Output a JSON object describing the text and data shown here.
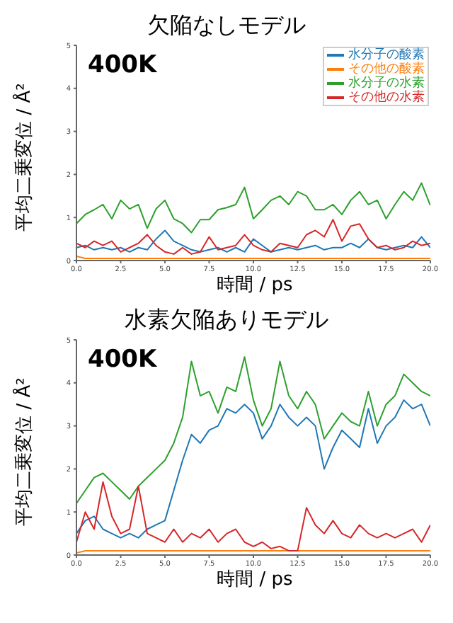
{
  "chart_data": [
    {
      "type": "line",
      "title": "欠陥なしモデル",
      "xlabel": "時間 / ps",
      "ylabel": "平均二乗変位 / Å²",
      "annotations": [
        "400K"
      ],
      "legend": "top right",
      "x": [
        0,
        0.5,
        1,
        1.5,
        2,
        2.5,
        3,
        3.5,
        4,
        4.5,
        5,
        5.5,
        6,
        6.5,
        7,
        7.5,
        8,
        8.5,
        9,
        9.5,
        10,
        10.5,
        11,
        11.5,
        12,
        12.5,
        13,
        13.5,
        14,
        14.5,
        15,
        15.5,
        16,
        16.5,
        17,
        17.5,
        18,
        18.5,
        19,
        19.5,
        20
      ],
      "xlim": [
        0,
        20
      ],
      "xticks": [
        {
          "value": 0,
          "label": "0.0"
        },
        {
          "value": 2.5,
          "label": "2.5"
        },
        {
          "value": 5,
          "label": "5.0"
        },
        {
          "value": 7.5,
          "label": "7.5"
        },
        {
          "value": 10,
          "label": "10.0"
        },
        {
          "value": 12.5,
          "label": "12.5"
        },
        {
          "value": 15,
          "label": "15.0"
        },
        {
          "value": 17.5,
          "label": "17.5"
        },
        {
          "value": 20,
          "label": "20.0"
        }
      ],
      "ylim": [
        0,
        5
      ],
      "yticks": [
        0,
        1,
        2,
        3,
        4,
        5
      ],
      "series": [
        {
          "name": "水分子の酸素",
          "color": "#1f77b4",
          "values": [
            0.3,
            0.35,
            0.25,
            0.3,
            0.25,
            0.3,
            0.2,
            0.3,
            0.25,
            0.5,
            0.7,
            0.45,
            0.35,
            0.25,
            0.2,
            0.25,
            0.3,
            0.2,
            0.3,
            0.2,
            0.5,
            0.35,
            0.2,
            0.25,
            0.3,
            0.25,
            0.3,
            0.35,
            0.25,
            0.3,
            0.3,
            0.4,
            0.3,
            0.5,
            0.3,
            0.25,
            0.3,
            0.35,
            0.3,
            0.55,
            0.3
          ]
        },
        {
          "name": "その他の酸素",
          "color": "#ff7f0e",
          "values": [
            0.1,
            0.05,
            0.05,
            0.05,
            0.05,
            0.05,
            0.05,
            0.05,
            0.05,
            0.05,
            0.05,
            0.05,
            0.05,
            0.05,
            0.05,
            0.05,
            0.05,
            0.05,
            0.05,
            0.05,
            0.05,
            0.05,
            0.05,
            0.05,
            0.05,
            0.05,
            0.05,
            0.05,
            0.05,
            0.05,
            0.05,
            0.05,
            0.05,
            0.05,
            0.05,
            0.05,
            0.05,
            0.05,
            0.05,
            0.05,
            0.05
          ]
        },
        {
          "name": "水分子の水素",
          "color": "#2ca02c",
          "values": [
            0.86,
            1.07,
            1.18,
            1.3,
            0.97,
            1.4,
            1.2,
            1.3,
            0.75,
            1.2,
            1.4,
            0.97,
            0.86,
            0.65,
            0.95,
            0.95,
            1.18,
            1.23,
            1.3,
            1.7,
            0.97,
            1.18,
            1.4,
            1.5,
            1.3,
            1.6,
            1.5,
            1.18,
            1.18,
            1.3,
            1.07,
            1.4,
            1.6,
            1.3,
            1.4,
            0.97,
            1.3,
            1.6,
            1.4,
            1.8,
            1.28
          ]
        },
        {
          "name": "その他の水素",
          "color": "#d62728",
          "values": [
            0.4,
            0.3,
            0.45,
            0.35,
            0.45,
            0.2,
            0.3,
            0.4,
            0.6,
            0.35,
            0.2,
            0.15,
            0.3,
            0.15,
            0.2,
            0.55,
            0.25,
            0.3,
            0.35,
            0.6,
            0.35,
            0.25,
            0.2,
            0.4,
            0.35,
            0.3,
            0.6,
            0.7,
            0.55,
            0.95,
            0.45,
            0.8,
            0.85,
            0.5,
            0.3,
            0.35,
            0.25,
            0.3,
            0.45,
            0.35,
            0.4
          ]
        }
      ]
    },
    {
      "type": "line",
      "title": "水素欠陥ありモデル",
      "xlabel": "時間 / ps",
      "ylabel": "平均二乗変位 / Å²",
      "annotations": [
        "400K"
      ],
      "x": [
        0,
        0.5,
        1,
        1.5,
        2,
        2.5,
        3,
        3.5,
        4,
        4.5,
        5,
        5.5,
        6,
        6.5,
        7,
        7.5,
        8,
        8.5,
        9,
        9.5,
        10,
        10.5,
        11,
        11.5,
        12,
        12.5,
        13,
        13.5,
        14,
        14.5,
        15,
        15.5,
        16,
        16.5,
        17,
        17.5,
        18,
        18.5,
        19,
        19.5,
        20
      ],
      "xlim": [
        0,
        20
      ],
      "xticks": [
        {
          "value": 0,
          "label": "0.0"
        },
        {
          "value": 2.5,
          "label": "2.5"
        },
        {
          "value": 5,
          "label": "5.0"
        },
        {
          "value": 7.5,
          "label": "7.5"
        },
        {
          "value": 10,
          "label": "10.0"
        },
        {
          "value": 12.5,
          "label": "12.5"
        },
        {
          "value": 15,
          "label": "15.0"
        },
        {
          "value": 17.5,
          "label": "17.5"
        },
        {
          "value": 20,
          "label": "20.0"
        }
      ],
      "ylim": [
        0,
        5
      ],
      "yticks": [
        0,
        1,
        2,
        3,
        4,
        5
      ],
      "series": [
        {
          "color": "#1f77b4",
          "values": [
            0.5,
            0.8,
            0.9,
            0.6,
            0.5,
            0.4,
            0.5,
            0.4,
            0.6,
            0.7,
            0.8,
            1.5,
            2.2,
            2.8,
            2.6,
            2.9,
            3.0,
            3.4,
            3.3,
            3.5,
            3.3,
            2.7,
            3.0,
            3.5,
            3.2,
            3.0,
            3.2,
            3.0,
            2.0,
            2.5,
            2.9,
            2.7,
            2.5,
            3.4,
            2.6,
            3.0,
            3.2,
            3.6,
            3.4,
            3.5,
            3.0
          ]
        },
        {
          "color": "#ff7f0e",
          "values": [
            0.05,
            0.1,
            0.1,
            0.1,
            0.1,
            0.1,
            0.1,
            0.1,
            0.1,
            0.1,
            0.1,
            0.1,
            0.1,
            0.1,
            0.1,
            0.1,
            0.1,
            0.1,
            0.1,
            0.1,
            0.1,
            0.1,
            0.1,
            0.1,
            0.1,
            0.1,
            0.1,
            0.1,
            0.1,
            0.1,
            0.1,
            0.1,
            0.1,
            0.1,
            0.1,
            0.1,
            0.1,
            0.1,
            0.1,
            0.1,
            0.1
          ]
        },
        {
          "color": "#2ca02c",
          "values": [
            1.2,
            1.5,
            1.8,
            1.9,
            1.7,
            1.5,
            1.3,
            1.6,
            1.8,
            2.0,
            2.2,
            2.6,
            3.2,
            4.5,
            3.7,
            3.8,
            3.3,
            3.9,
            3.8,
            4.6,
            3.6,
            3.0,
            3.4,
            4.5,
            3.7,
            3.4,
            3.8,
            3.5,
            2.7,
            3.0,
            3.3,
            3.1,
            3.0,
            3.8,
            3.0,
            3.5,
            3.7,
            4.2,
            4.0,
            3.8,
            3.7
          ]
        },
        {
          "color": "#d62728",
          "values": [
            0.3,
            1.0,
            0.6,
            1.7,
            0.9,
            0.5,
            0.6,
            1.6,
            0.5,
            0.4,
            0.3,
            0.6,
            0.3,
            0.5,
            0.4,
            0.6,
            0.3,
            0.5,
            0.6,
            0.3,
            0.2,
            0.3,
            0.15,
            0.2,
            0.1,
            0.1,
            1.1,
            0.7,
            0.5,
            0.8,
            0.5,
            0.4,
            0.7,
            0.5,
            0.4,
            0.5,
            0.4,
            0.5,
            0.6,
            0.3,
            0.7
          ]
        }
      ]
    }
  ]
}
